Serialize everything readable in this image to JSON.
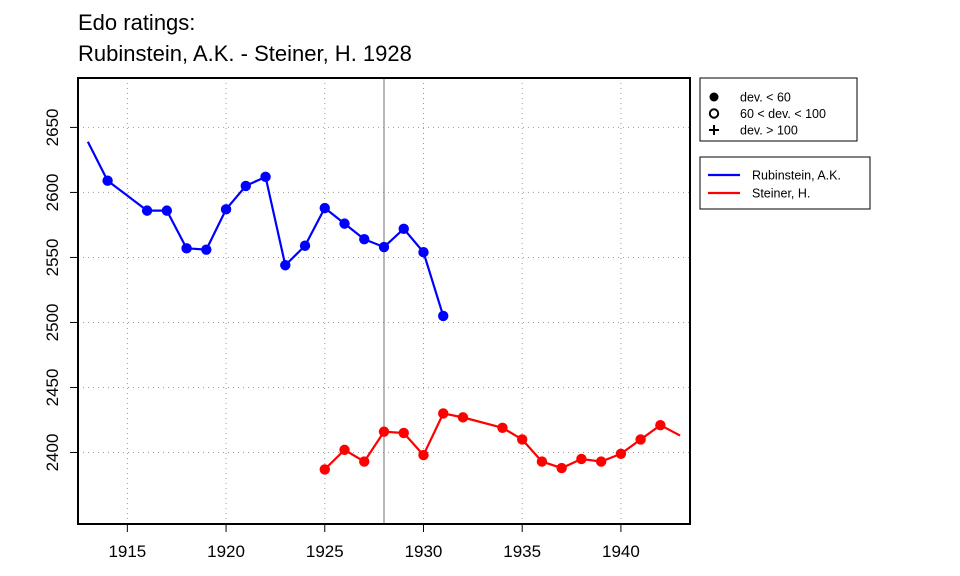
{
  "chart_data": {
    "type": "line",
    "title_lines": [
      "Edo ratings:",
      "Rubinstein, A.K. - Steiner, H. 1928"
    ],
    "xlabel": "",
    "ylabel": "",
    "xlim": [
      1912.5,
      1943.5
    ],
    "ylim": [
      2345,
      2688
    ],
    "x_ticks": [
      1915,
      1920,
      1925,
      1930,
      1935,
      1940
    ],
    "y_ticks": [
      2400,
      2450,
      2500,
      2550,
      2600,
      2650
    ],
    "grid": true,
    "grid_style": "dotted",
    "marker_line_x": 1928,
    "symbol_legend": {
      "placement": "top-right-outside",
      "entries": [
        {
          "label": "dev. < 60",
          "symbol": "filled-circle"
        },
        {
          "label": "60 < dev. < 100",
          "symbol": "open-circle"
        },
        {
          "label": "dev. > 100",
          "symbol": "plus"
        }
      ]
    },
    "series_legend": {
      "placement": "top-right-outside",
      "entries": [
        {
          "label": "Rubinstein, A.K.",
          "color": "#0000ff"
        },
        {
          "label": "Steiner, H.",
          "color": "#ff0000"
        }
      ]
    },
    "series": [
      {
        "name": "Rubinstein, A.K.",
        "color": "#0000ff",
        "points": [
          {
            "x": 1913,
            "y": 2639,
            "marker": "none"
          },
          {
            "x": 1914,
            "y": 2609,
            "marker": "filled-circle"
          },
          {
            "x": 1916,
            "y": 2586,
            "marker": "filled-circle"
          },
          {
            "x": 1917,
            "y": 2586,
            "marker": "filled-circle"
          },
          {
            "x": 1918,
            "y": 2557,
            "marker": "filled-circle"
          },
          {
            "x": 1919,
            "y": 2556,
            "marker": "filled-circle"
          },
          {
            "x": 1920,
            "y": 2587,
            "marker": "filled-circle"
          },
          {
            "x": 1921,
            "y": 2605,
            "marker": "filled-circle"
          },
          {
            "x": 1922,
            "y": 2612,
            "marker": "filled-circle"
          },
          {
            "x": 1923,
            "y": 2544,
            "marker": "filled-circle"
          },
          {
            "x": 1924,
            "y": 2559,
            "marker": "filled-circle"
          },
          {
            "x": 1925,
            "y": 2588,
            "marker": "filled-circle"
          },
          {
            "x": 1926,
            "y": 2576,
            "marker": "filled-circle"
          },
          {
            "x": 1927,
            "y": 2564,
            "marker": "filled-circle"
          },
          {
            "x": 1928,
            "y": 2558,
            "marker": "filled-circle"
          },
          {
            "x": 1929,
            "y": 2572,
            "marker": "filled-circle"
          },
          {
            "x": 1930,
            "y": 2554,
            "marker": "filled-circle"
          },
          {
            "x": 1931,
            "y": 2505,
            "marker": "filled-circle"
          }
        ]
      },
      {
        "name": "Steiner, H.",
        "color": "#ff0000",
        "points": [
          {
            "x": 1925,
            "y": 2387,
            "marker": "filled-circle"
          },
          {
            "x": 1926,
            "y": 2402,
            "marker": "filled-circle"
          },
          {
            "x": 1927,
            "y": 2393,
            "marker": "filled-circle"
          },
          {
            "x": 1928,
            "y": 2416,
            "marker": "filled-circle"
          },
          {
            "x": 1929,
            "y": 2415,
            "marker": "filled-circle"
          },
          {
            "x": 1930,
            "y": 2398,
            "marker": "filled-circle"
          },
          {
            "x": 1931,
            "y": 2430,
            "marker": "filled-circle"
          },
          {
            "x": 1932,
            "y": 2427,
            "marker": "filled-circle"
          },
          {
            "x": 1934,
            "y": 2419,
            "marker": "filled-circle"
          },
          {
            "x": 1935,
            "y": 2410,
            "marker": "filled-circle"
          },
          {
            "x": 1936,
            "y": 2393,
            "marker": "filled-circle"
          },
          {
            "x": 1937,
            "y": 2388,
            "marker": "filled-circle"
          },
          {
            "x": 1938,
            "y": 2395,
            "marker": "filled-circle"
          },
          {
            "x": 1939,
            "y": 2393,
            "marker": "filled-circle"
          },
          {
            "x": 1940,
            "y": 2399,
            "marker": "filled-circle"
          },
          {
            "x": 1941,
            "y": 2410,
            "marker": "filled-circle"
          },
          {
            "x": 1942,
            "y": 2421,
            "marker": "filled-circle"
          },
          {
            "x": 1943,
            "y": 2413,
            "marker": "none"
          }
        ]
      }
    ]
  }
}
